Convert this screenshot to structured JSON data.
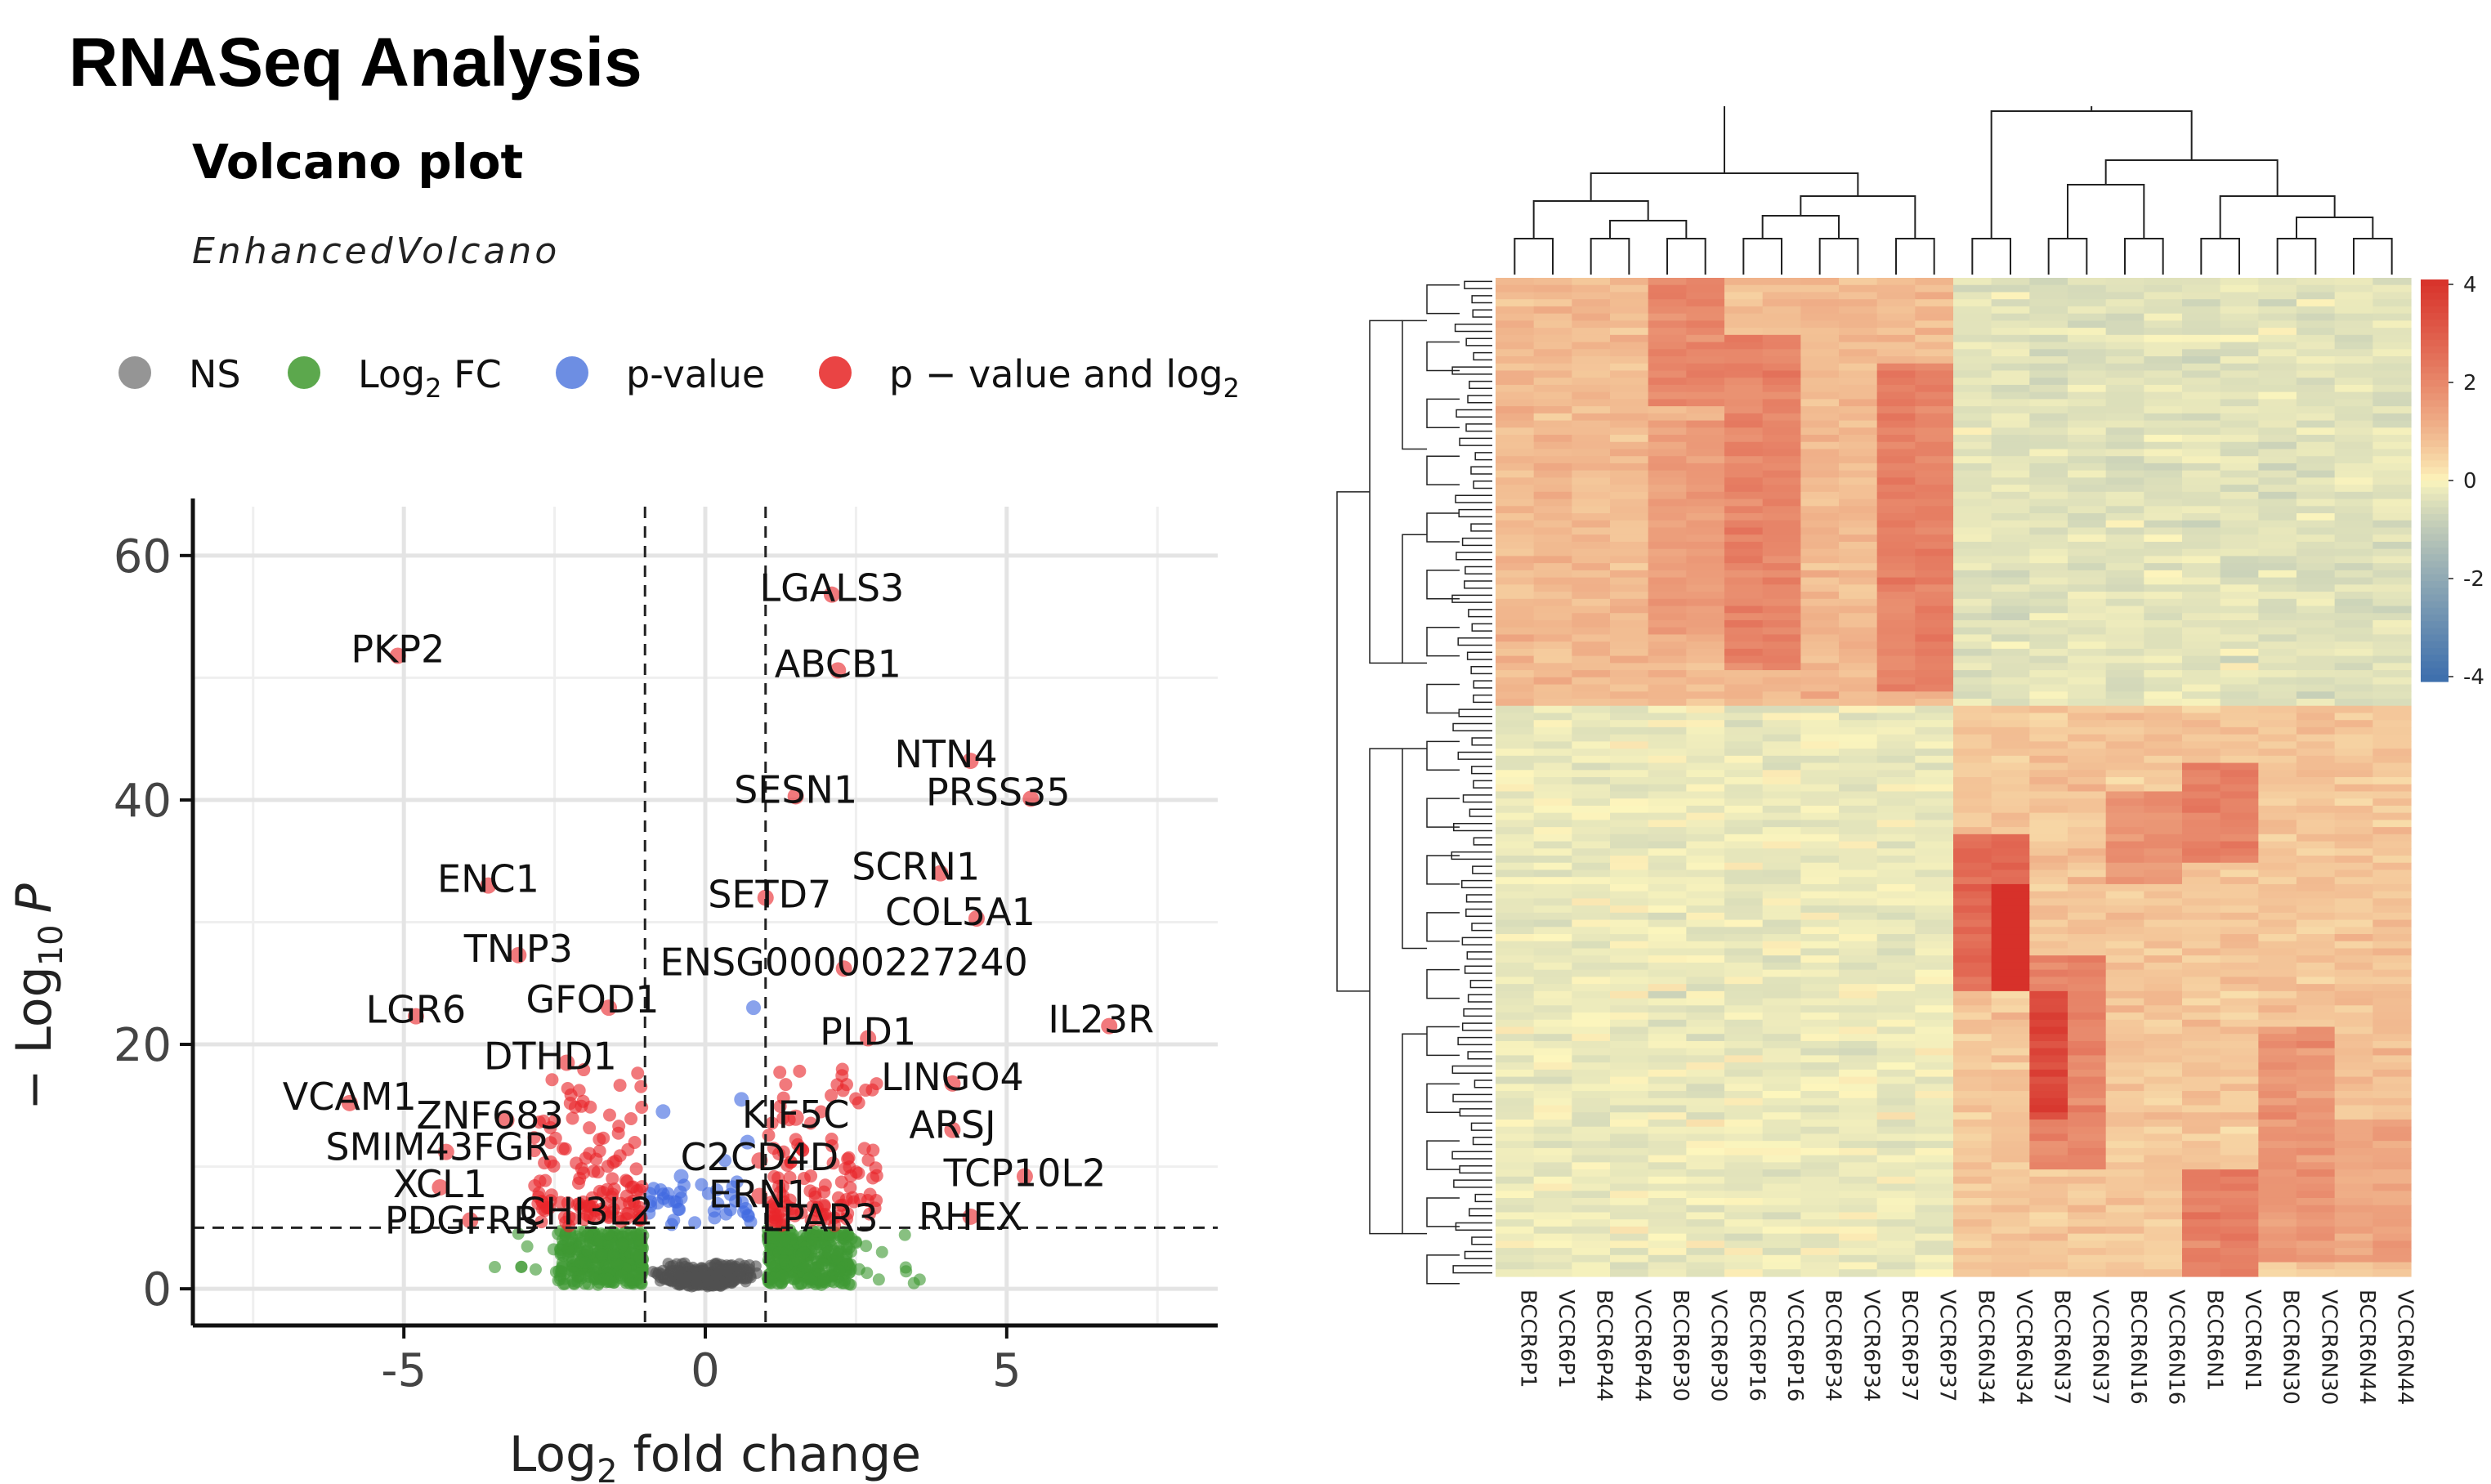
{
  "page_title": "RNASeq Analysis",
  "chart_data": [
    {
      "type": "scatter",
      "title": "Volcano plot",
      "subtitle": "EnhancedVolcano",
      "xlabel_main": "Log",
      "xlabel_sub": "2",
      "xlabel_rest": " fold change",
      "ylabel_pre": "− Log",
      "ylabel_sub": "10",
      "ylabel_italic": "P",
      "xlim": [
        -8.5,
        8.5
      ],
      "ylim": [
        -3,
        64
      ],
      "x_ticks": [
        {
          "v": -5,
          "label": "-5"
        },
        {
          "v": 0,
          "label": "0"
        },
        {
          "v": 5,
          "label": "5"
        }
      ],
      "y_ticks": [
        {
          "v": 0,
          "label": "0"
        },
        {
          "v": 20,
          "label": "20"
        },
        {
          "v": 40,
          "label": "40"
        },
        {
          "v": 60,
          "label": "60"
        }
      ],
      "fc_cutoff": [
        -1,
        1
      ],
      "p_cutoff": 5,
      "grid": true,
      "legend_position": "top",
      "legend": [
        {
          "label": "NS",
          "color": "#8a8a8a"
        },
        {
          "label": "Log",
          "sub": "2",
          "suffix": " FC",
          "color": "#4a9e3a"
        },
        {
          "label": "p-value",
          "color": "#5d82e0"
        },
        {
          "label": "p − value and log",
          "sub": "2",
          "color": "#e83030"
        }
      ],
      "colors": {
        "ns": "#505050",
        "fc": "#3f9933",
        "p": "#4169e1",
        "both": "#e8262b"
      },
      "labeled_points": [
        {
          "gene": "LGALS3",
          "x": 2.1,
          "y": 56.8
        },
        {
          "gene": "PKP2",
          "x": -5.1,
          "y": 51.8
        },
        {
          "gene": "ABCB1",
          "x": 2.2,
          "y": 50.6
        },
        {
          "gene": "NTN4",
          "x": 4.4,
          "y": 43.2
        },
        {
          "gene": "PRSS35",
          "x": 5.4,
          "y": 40.1
        },
        {
          "gene": "SESN1",
          "x": 1.5,
          "y": 40.3
        },
        {
          "gene": "ENC1",
          "x": -3.6,
          "y": 33.0
        },
        {
          "gene": "SCRN1",
          "x": 3.9,
          "y": 34.0
        },
        {
          "gene": "SETD7",
          "x": 1.0,
          "y": 32.0
        },
        {
          "gene": "COL5A1",
          "x": 4.5,
          "y": 30.3
        },
        {
          "gene": "TNIP3",
          "x": -3.1,
          "y": 27.3
        },
        {
          "gene": "ENSG00000227240",
          "x": 2.3,
          "y": 26.2
        },
        {
          "gene": "LGR6",
          "x": -4.8,
          "y": 22.3
        },
        {
          "gene": "GFOD1",
          "x": -1.6,
          "y": 23.0
        },
        {
          "gene": "IL23R",
          "x": 6.7,
          "y": 21.5
        },
        {
          "gene": "PLD1",
          "x": 2.7,
          "y": 20.5
        },
        {
          "gene": "DTHD1",
          "x": -2.3,
          "y": 18.5
        },
        {
          "gene": "LINGO4",
          "x": 4.1,
          "y": 16.8
        },
        {
          "gene": "VCAM1",
          "x": -5.9,
          "y": 15.2
        },
        {
          "gene": "ZNF683",
          "x": -3.3,
          "y": 13.8
        },
        {
          "gene": "KIF5C",
          "x": 1.5,
          "y": 14.0
        },
        {
          "gene": "ARSJ",
          "x": 4.1,
          "y": 13.0
        },
        {
          "gene": "SMIM43FGR",
          "x": -4.3,
          "y": 11.2
        },
        {
          "gene": "C2CD4D",
          "x": 0.9,
          "y": 10.5
        },
        {
          "gene": "TCP10L2",
          "x": 5.3,
          "y": 9.2
        },
        {
          "gene": "XCL1",
          "x": -4.4,
          "y": 8.3
        },
        {
          "gene": "ERN1",
          "x": 0.9,
          "y": 7.6
        },
        {
          "gene": "CHI3L2",
          "x": -1.7,
          "y": 6.2
        },
        {
          "gene": "PDGFRB",
          "x": -3.9,
          "y": 5.6
        },
        {
          "gene": "LPAR3",
          "x": 1.9,
          "y": 5.8
        },
        {
          "gene": "RHEX",
          "x": 4.4,
          "y": 5.9
        }
      ]
    },
    {
      "type": "heatmap",
      "columns": [
        "BCCR6P1",
        "VCCR6P1",
        "BCCR6P44",
        "VCCR6P44",
        "BCCR6P30",
        "VCCR6P30",
        "BCCR6P16",
        "VCCR6P16",
        "BCCR6P34",
        "VCCR6P34",
        "BCCR6P37",
        "VCCR6P37",
        "BCCR6N34",
        "VCCR6N34",
        "BCCR6N37",
        "VCCR6N37",
        "BCCR6N16",
        "VCCR6N16",
        "BCCR6N1",
        "VCCR6N1",
        "BCCR6N30",
        "VCCR6N30",
        "BCCR6N44",
        "VCCR6N44"
      ],
      "colorbar": {
        "min": -4,
        "max": 4,
        "ticks": [
          "4",
          "2",
          "0",
          "-2",
          "-4"
        ],
        "low": "#3c6ead",
        "mid": "#fdf6bd",
        "high": "#d7312a"
      },
      "dendrogram_rows": true,
      "dendrogram_columns": true
    }
  ]
}
